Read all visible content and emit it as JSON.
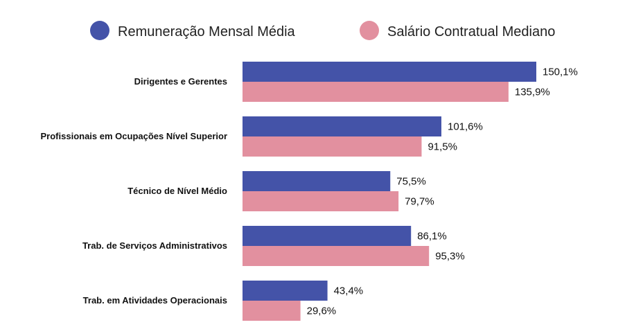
{
  "chart_data": {
    "type": "bar",
    "orientation": "horizontal",
    "categories": [
      "Dirigentes e Gerentes",
      "Profissionais em Ocupações Nível Superior",
      "Técnico de Nível Médio",
      "Trab. de Serviços Administrativos",
      "Trab. em Atividades Operacionais"
    ],
    "series": [
      {
        "name": "Remuneração Mensal Média",
        "color": "#4453a8",
        "values": [
          150.1,
          101.6,
          75.5,
          86.1,
          43.4
        ],
        "labels": [
          "150,1%",
          "101,6%",
          "75,5%",
          "86,1%",
          "43,4%"
        ]
      },
      {
        "name": "Salário Contratual Mediano",
        "color": "#e2909f",
        "values": [
          135.9,
          91.5,
          79.7,
          95.3,
          29.6
        ],
        "labels": [
          "135,9%",
          "91,5%",
          "79,7%",
          "95,3%",
          "29,6%"
        ]
      }
    ],
    "title": "",
    "xlabel": "",
    "ylabel": "",
    "xlim": [
      0,
      150.1
    ],
    "grid": false,
    "legend_position": "top"
  }
}
